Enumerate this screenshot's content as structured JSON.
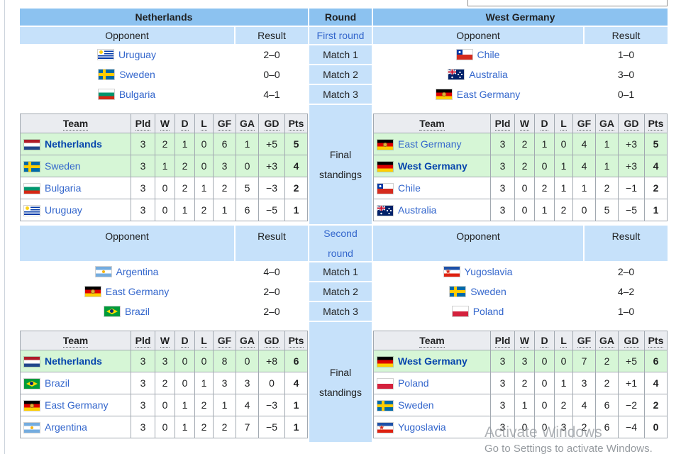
{
  "colors": {
    "header_blue": "#8cc2f0",
    "cell_blue": "#c6e1fa",
    "highlight_green": "#d6f6d6",
    "table_border": "#a2a9b1",
    "standings_header_gray": "#eaecf0",
    "link": "#3366cc",
    "own_team_link": "#0645ad"
  },
  "labels": {
    "opponent": "Opponent",
    "result": "Result"
  },
  "standings_headers": {
    "team": "Team",
    "cols": [
      "Pld",
      "W",
      "D",
      "L",
      "GF",
      "GA",
      "GD",
      "Pts"
    ]
  },
  "round_column": {
    "title": "Round",
    "first_round_label": "First round",
    "second_round_label": "Second round",
    "matches": [
      "Match 1",
      "Match 2",
      "Match 3"
    ],
    "final_standings_label": "Final standings"
  },
  "left": {
    "title": "Netherlands",
    "first_matches": [
      {
        "flag": "uruguay-flag",
        "opponent": "Uruguay",
        "result": "2–0"
      },
      {
        "flag": "sweden-flag",
        "opponent": "Sweden",
        "result": "0–0"
      },
      {
        "flag": "bulgaria-flag",
        "opponent": "Bulgaria",
        "result": "4–1"
      }
    ],
    "first_standings": {
      "rows": [
        {
          "flag": "netherlands-flag",
          "team": "Netherlands",
          "own": true,
          "highlight": true,
          "v": [
            "3",
            "2",
            "1",
            "0",
            "6",
            "1",
            "+5",
            "5"
          ]
        },
        {
          "flag": "sweden-flag",
          "team": "Sweden",
          "highlight": true,
          "v": [
            "3",
            "1",
            "2",
            "0",
            "3",
            "0",
            "+3",
            "4"
          ]
        },
        {
          "flag": "bulgaria-flag",
          "team": "Bulgaria",
          "v": [
            "3",
            "0",
            "2",
            "1",
            "2",
            "5",
            "−3",
            "2"
          ]
        },
        {
          "flag": "uruguay-flag",
          "team": "Uruguay",
          "v": [
            "3",
            "0",
            "1",
            "2",
            "1",
            "6",
            "−5",
            "1"
          ]
        }
      ]
    },
    "second_matches": [
      {
        "flag": "argentina-flag",
        "opponent": "Argentina",
        "result": "4–0"
      },
      {
        "flag": "east-germany-flag",
        "opponent": "East Germany",
        "result": "2–0"
      },
      {
        "flag": "brazil-flag",
        "opponent": "Brazil",
        "result": "2–0"
      }
    ],
    "second_standings": {
      "rows": [
        {
          "flag": "netherlands-flag",
          "team": "Netherlands",
          "own": true,
          "highlight": true,
          "v": [
            "3",
            "3",
            "0",
            "0",
            "8",
            "0",
            "+8",
            "6"
          ]
        },
        {
          "flag": "brazil-flag",
          "team": "Brazil",
          "v": [
            "3",
            "2",
            "0",
            "1",
            "3",
            "3",
            "0",
            "4"
          ]
        },
        {
          "flag": "east-germany-flag",
          "team": "East Germany",
          "v": [
            "3",
            "0",
            "1",
            "2",
            "1",
            "4",
            "−3",
            "1"
          ]
        },
        {
          "flag": "argentina-flag",
          "team": "Argentina",
          "v": [
            "3",
            "0",
            "1",
            "2",
            "2",
            "7",
            "−5",
            "1"
          ]
        }
      ]
    }
  },
  "right": {
    "title": "West Germany",
    "first_matches": [
      {
        "flag": "chile-flag",
        "opponent": "Chile",
        "result": "1–0"
      },
      {
        "flag": "australia-flag",
        "opponent": "Australia",
        "result": "3–0"
      },
      {
        "flag": "east-germany-flag",
        "opponent": "East Germany",
        "result": "0–1"
      }
    ],
    "first_standings": {
      "rows": [
        {
          "flag": "east-germany-flag",
          "team": "East Germany",
          "highlight": true,
          "v": [
            "3",
            "2",
            "1",
            "0",
            "4",
            "1",
            "+3",
            "5"
          ]
        },
        {
          "flag": "west-germany-flag",
          "team": "West Germany",
          "own": true,
          "highlight": true,
          "v": [
            "3",
            "2",
            "0",
            "1",
            "4",
            "1",
            "+3",
            "4"
          ]
        },
        {
          "flag": "chile-flag",
          "team": "Chile",
          "v": [
            "3",
            "0",
            "2",
            "1",
            "1",
            "2",
            "−1",
            "2"
          ]
        },
        {
          "flag": "australia-flag",
          "team": "Australia",
          "v": [
            "3",
            "0",
            "1",
            "2",
            "0",
            "5",
            "−5",
            "1"
          ]
        }
      ]
    },
    "second_matches": [
      {
        "flag": "yugoslavia-flag",
        "opponent": "Yugoslavia",
        "result": "2–0"
      },
      {
        "flag": "sweden-flag",
        "opponent": "Sweden",
        "result": "4–2"
      },
      {
        "flag": "poland-flag",
        "opponent": "Poland",
        "result": "1–0"
      }
    ],
    "second_standings": {
      "rows": [
        {
          "flag": "west-germany-flag",
          "team": "West Germany",
          "own": true,
          "highlight": true,
          "v": [
            "3",
            "3",
            "0",
            "0",
            "7",
            "2",
            "+5",
            "6"
          ]
        },
        {
          "flag": "poland-flag",
          "team": "Poland",
          "v": [
            "3",
            "2",
            "0",
            "1",
            "3",
            "2",
            "+1",
            "4"
          ]
        },
        {
          "flag": "sweden-flag",
          "team": "Sweden",
          "v": [
            "3",
            "1",
            "0",
            "2",
            "4",
            "6",
            "−2",
            "2"
          ]
        },
        {
          "flag": "yugoslavia-flag",
          "team": "Yugoslavia",
          "v": [
            "3",
            "0",
            "0",
            "3",
            "2",
            "6",
            "−4",
            "0"
          ]
        }
      ]
    }
  },
  "watermark": {
    "line1": "Activate Windows",
    "line2": "Go to Settings to activate Windows."
  }
}
